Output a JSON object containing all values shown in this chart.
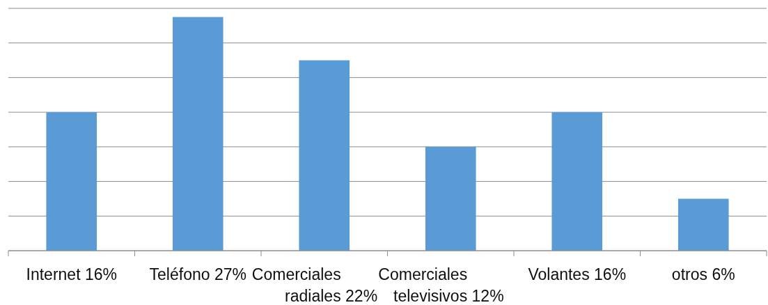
{
  "chart_data": {
    "type": "bar",
    "categories": [
      "Internet",
      "Teléfono",
      "Comerciales radiales",
      "Comerciales televisivos",
      "Volantes",
      "otros"
    ],
    "values": [
      16,
      27,
      22,
      12,
      16,
      6
    ],
    "value_labels": [
      "16%",
      "27%",
      "22%",
      "12%",
      "16%",
      "6%"
    ],
    "color": "#5b9bd5",
    "ylim": [
      0,
      28
    ],
    "yticks": [
      {
        "value": 0,
        "label": null
      },
      {
        "value": 4,
        "label": null
      },
      {
        "value": 8,
        "label": null
      },
      {
        "value": 12,
        "label": null
      },
      {
        "value": 16,
        "label": null
      },
      {
        "value": 20,
        "label": null
      },
      {
        "value": 24,
        "label": null
      },
      {
        "value": 28,
        "label": null
      }
    ],
    "grid": true,
    "tick_labels": "x"
  }
}
